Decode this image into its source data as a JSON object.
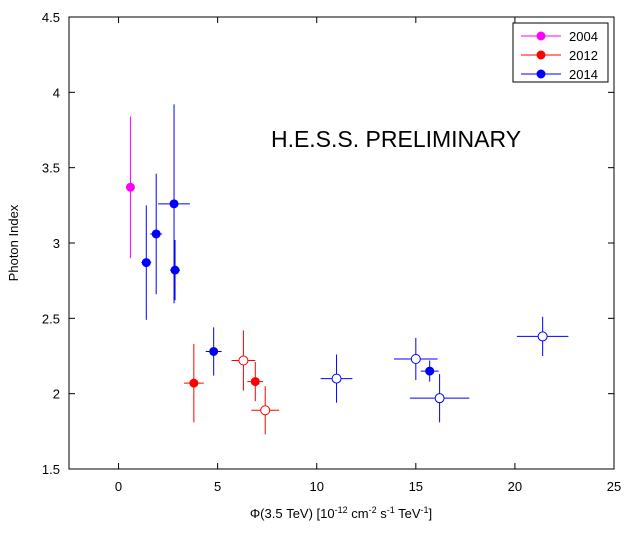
{
  "chart_data": {
    "type": "scatter",
    "title": "",
    "xlabel_parts": {
      "pre": "Φ(3.5 TeV) [10",
      "exp1": "-12",
      "mid1": " cm",
      "exp2": "-2",
      "mid2": " s",
      "exp3": "-1",
      "mid3": " TeV",
      "exp4": "-1",
      "post": "]"
    },
    "ylabel": "Photon Index",
    "xlim": [
      -2.5,
      25
    ],
    "ylim": [
      1.5,
      4.5
    ],
    "xticks": [
      0,
      5,
      10,
      15,
      20,
      25
    ],
    "yticks": [
      1.5,
      2,
      2.5,
      3,
      3.5,
      4,
      4.5
    ],
    "xtick_labels": [
      "0",
      "5",
      "10",
      "15",
      "20",
      "25"
    ],
    "ytick_labels": [
      "1.5",
      "2",
      "2.5",
      "3",
      "3.5",
      "4",
      "4.5"
    ],
    "annotation": "H.E.S.S. PRELIMINARY",
    "legend_position": "top-right",
    "series": [
      {
        "name": "2004",
        "color": "#ff00ff",
        "points": [
          {
            "x": 0.6,
            "y": 3.37,
            "xerr": 0,
            "yerr_lo": 0.47,
            "yerr_hi": 0.47,
            "filled": true
          }
        ]
      },
      {
        "name": "2012",
        "color": "#ff0000",
        "points": [
          {
            "x": 3.8,
            "y": 2.07,
            "xerr": 0.5,
            "yerr_lo": 0.26,
            "yerr_hi": 0.26,
            "filled": true
          },
          {
            "x": 6.3,
            "y": 2.22,
            "xerr": 0.6,
            "yerr_lo": 0.2,
            "yerr_hi": 0.2,
            "filled": false
          },
          {
            "x": 6.9,
            "y": 2.08,
            "xerr": 0.4,
            "yerr_lo": 0.13,
            "yerr_hi": 0.13,
            "filled": true
          },
          {
            "x": 7.4,
            "y": 1.89,
            "xerr": 0.7,
            "yerr_lo": 0.16,
            "yerr_hi": 0.16,
            "filled": false
          }
        ]
      },
      {
        "name": "2014",
        "color": "#0000ff",
        "points": [
          {
            "x": 1.4,
            "y": 2.87,
            "xerr": 0.25,
            "yerr_lo": 0.38,
            "yerr_hi": 0.38,
            "filled": true
          },
          {
            "x": 1.9,
            "y": 3.06,
            "xerr": 0.3,
            "yerr_lo": 0.4,
            "yerr_hi": 0.4,
            "filled": true
          },
          {
            "x": 2.8,
            "y": 3.26,
            "xerr": 0.8,
            "yerr_lo": 0.66,
            "yerr_hi": 0.66,
            "filled": true
          },
          {
            "x": 2.85,
            "y": 2.82,
            "xerr": 0.25,
            "yerr_lo": 0.2,
            "yerr_hi": 0.2,
            "filled": true
          },
          {
            "x": 4.8,
            "y": 2.28,
            "xerr": 0.4,
            "yerr_lo": 0.16,
            "yerr_hi": 0.16,
            "filled": true
          },
          {
            "x": 11.0,
            "y": 2.1,
            "xerr": 0.8,
            "yerr_lo": 0.16,
            "yerr_hi": 0.16,
            "filled": false
          },
          {
            "x": 15.0,
            "y": 2.23,
            "xerr": 1.1,
            "yerr_lo": 0.14,
            "yerr_hi": 0.14,
            "filled": false
          },
          {
            "x": 15.7,
            "y": 2.15,
            "xerr": 0.45,
            "yerr_lo": 0.07,
            "yerr_hi": 0.07,
            "filled": true
          },
          {
            "x": 16.2,
            "y": 1.97,
            "xerr": 1.5,
            "yerr_lo": 0.16,
            "yerr_hi": 0.16,
            "filled": false
          },
          {
            "x": 21.4,
            "y": 2.38,
            "xerr": 1.3,
            "yerr_lo": 0.13,
            "yerr_hi": 0.13,
            "filled": false
          }
        ]
      }
    ]
  }
}
